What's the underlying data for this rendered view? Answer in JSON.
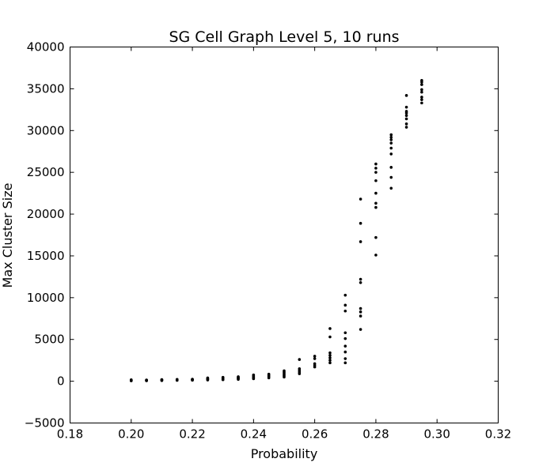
{
  "chart_data": {
    "type": "scatter",
    "title": "SG Cell Graph Level 5, 10 runs",
    "xlabel": "Probability",
    "ylabel": "Max Cluster Size",
    "xlim": [
      0.18,
      0.32
    ],
    "ylim": [
      -5000,
      40000
    ],
    "x_ticks": [
      "0.18",
      "0.20",
      "0.22",
      "0.24",
      "0.26",
      "0.28",
      "0.30",
      "0.32"
    ],
    "y_ticks": [
      "40000",
      "35000",
      "30000",
      "25000",
      "20000",
      "15000",
      "10000",
      "5000",
      "0",
      "−5000"
    ],
    "grid": false,
    "marker_color": "#000000",
    "points": [
      {
        "x": 0.2,
        "y": 50
      },
      {
        "x": 0.2,
        "y": 80
      },
      {
        "x": 0.2,
        "y": 110
      },
      {
        "x": 0.2,
        "y": 140
      },
      {
        "x": 0.2,
        "y": 170
      },
      {
        "x": 0.205,
        "y": 60
      },
      {
        "x": 0.205,
        "y": 90
      },
      {
        "x": 0.205,
        "y": 120
      },
      {
        "x": 0.205,
        "y": 150
      },
      {
        "x": 0.21,
        "y": 80
      },
      {
        "x": 0.21,
        "y": 120
      },
      {
        "x": 0.21,
        "y": 160
      },
      {
        "x": 0.21,
        "y": 190
      },
      {
        "x": 0.215,
        "y": 100
      },
      {
        "x": 0.215,
        "y": 140
      },
      {
        "x": 0.215,
        "y": 180
      },
      {
        "x": 0.215,
        "y": 220
      },
      {
        "x": 0.22,
        "y": 120
      },
      {
        "x": 0.22,
        "y": 160
      },
      {
        "x": 0.22,
        "y": 200
      },
      {
        "x": 0.22,
        "y": 240
      },
      {
        "x": 0.225,
        "y": 150
      },
      {
        "x": 0.225,
        "y": 200
      },
      {
        "x": 0.225,
        "y": 260
      },
      {
        "x": 0.225,
        "y": 330
      },
      {
        "x": 0.225,
        "y": 400
      },
      {
        "x": 0.23,
        "y": 180
      },
      {
        "x": 0.23,
        "y": 250
      },
      {
        "x": 0.23,
        "y": 320
      },
      {
        "x": 0.23,
        "y": 400
      },
      {
        "x": 0.23,
        "y": 470
      },
      {
        "x": 0.235,
        "y": 220
      },
      {
        "x": 0.235,
        "y": 300
      },
      {
        "x": 0.235,
        "y": 380
      },
      {
        "x": 0.235,
        "y": 460
      },
      {
        "x": 0.235,
        "y": 540
      },
      {
        "x": 0.24,
        "y": 300
      },
      {
        "x": 0.24,
        "y": 400
      },
      {
        "x": 0.24,
        "y": 500
      },
      {
        "x": 0.24,
        "y": 620
      },
      {
        "x": 0.24,
        "y": 750
      },
      {
        "x": 0.245,
        "y": 400
      },
      {
        "x": 0.245,
        "y": 550
      },
      {
        "x": 0.245,
        "y": 700
      },
      {
        "x": 0.245,
        "y": 850
      },
      {
        "x": 0.25,
        "y": 500
      },
      {
        "x": 0.25,
        "y": 650
      },
      {
        "x": 0.25,
        "y": 800
      },
      {
        "x": 0.25,
        "y": 950
      },
      {
        "x": 0.25,
        "y": 1100
      },
      {
        "x": 0.25,
        "y": 1250
      },
      {
        "x": 0.255,
        "y": 900
      },
      {
        "x": 0.255,
        "y": 1100
      },
      {
        "x": 0.255,
        "y": 1300
      },
      {
        "x": 0.255,
        "y": 1500
      },
      {
        "x": 0.255,
        "y": 2600
      },
      {
        "x": 0.26,
        "y": 1700
      },
      {
        "x": 0.26,
        "y": 1900
      },
      {
        "x": 0.26,
        "y": 2100
      },
      {
        "x": 0.26,
        "y": 2700
      },
      {
        "x": 0.26,
        "y": 3000
      },
      {
        "x": 0.265,
        "y": 2200
      },
      {
        "x": 0.265,
        "y": 2500
      },
      {
        "x": 0.265,
        "y": 2800
      },
      {
        "x": 0.265,
        "y": 3100
      },
      {
        "x": 0.265,
        "y": 3400
      },
      {
        "x": 0.265,
        "y": 5300
      },
      {
        "x": 0.265,
        "y": 6300
      },
      {
        "x": 0.27,
        "y": 2200
      },
      {
        "x": 0.27,
        "y": 2700
      },
      {
        "x": 0.27,
        "y": 3500
      },
      {
        "x": 0.27,
        "y": 4200
      },
      {
        "x": 0.27,
        "y": 5100
      },
      {
        "x": 0.27,
        "y": 5800
      },
      {
        "x": 0.27,
        "y": 8400
      },
      {
        "x": 0.27,
        "y": 9100
      },
      {
        "x": 0.27,
        "y": 10300
      },
      {
        "x": 0.275,
        "y": 6200
      },
      {
        "x": 0.275,
        "y": 7800
      },
      {
        "x": 0.275,
        "y": 8300
      },
      {
        "x": 0.275,
        "y": 8700
      },
      {
        "x": 0.275,
        "y": 11800
      },
      {
        "x": 0.275,
        "y": 12200
      },
      {
        "x": 0.275,
        "y": 16700
      },
      {
        "x": 0.275,
        "y": 18900
      },
      {
        "x": 0.275,
        "y": 21800
      },
      {
        "x": 0.28,
        "y": 15100
      },
      {
        "x": 0.28,
        "y": 17200
      },
      {
        "x": 0.28,
        "y": 20800
      },
      {
        "x": 0.28,
        "y": 21300
      },
      {
        "x": 0.28,
        "y": 22500
      },
      {
        "x": 0.28,
        "y": 24000
      },
      {
        "x": 0.28,
        "y": 25000
      },
      {
        "x": 0.28,
        "y": 25500
      },
      {
        "x": 0.28,
        "y": 26000
      },
      {
        "x": 0.285,
        "y": 23100
      },
      {
        "x": 0.285,
        "y": 24400
      },
      {
        "x": 0.285,
        "y": 25600
      },
      {
        "x": 0.285,
        "y": 27200
      },
      {
        "x": 0.285,
        "y": 27900
      },
      {
        "x": 0.285,
        "y": 28500
      },
      {
        "x": 0.285,
        "y": 28900
      },
      {
        "x": 0.285,
        "y": 29200
      },
      {
        "x": 0.285,
        "y": 29500
      },
      {
        "x": 0.29,
        "y": 30400
      },
      {
        "x": 0.29,
        "y": 30800
      },
      {
        "x": 0.29,
        "y": 31400
      },
      {
        "x": 0.29,
        "y": 31800
      },
      {
        "x": 0.29,
        "y": 32100
      },
      {
        "x": 0.29,
        "y": 32300
      },
      {
        "x": 0.29,
        "y": 32800
      },
      {
        "x": 0.29,
        "y": 34200
      },
      {
        "x": 0.295,
        "y": 33300
      },
      {
        "x": 0.295,
        "y": 33700
      },
      {
        "x": 0.295,
        "y": 34000
      },
      {
        "x": 0.295,
        "y": 34600
      },
      {
        "x": 0.295,
        "y": 34900
      },
      {
        "x": 0.295,
        "y": 35500
      },
      {
        "x": 0.295,
        "y": 35800
      },
      {
        "x": 0.295,
        "y": 36000
      }
    ]
  }
}
